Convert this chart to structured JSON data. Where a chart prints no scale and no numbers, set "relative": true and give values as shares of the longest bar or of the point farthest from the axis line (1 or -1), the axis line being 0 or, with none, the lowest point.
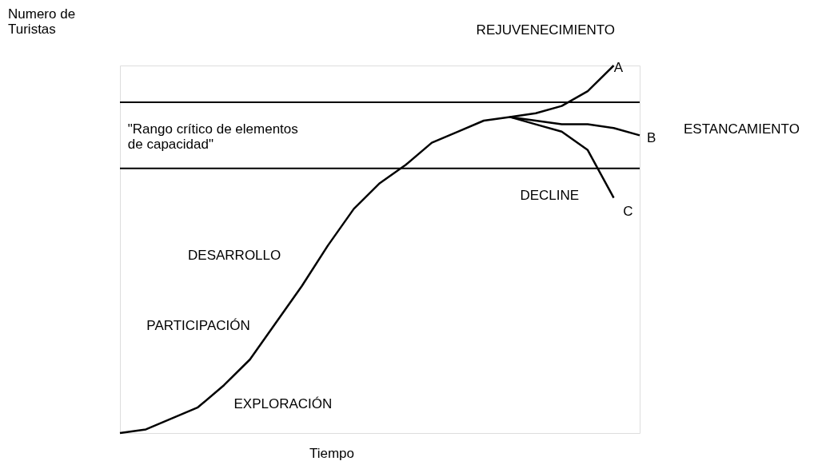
{
  "chart_data": {
    "type": "line",
    "relative": true,
    "tick_labels": false,
    "xlabel": "Tiempo",
    "ylabel": "Numero de\nTuristas",
    "categories": [
      null,
      null,
      null,
      null,
      null,
      null,
      null,
      null,
      null,
      null,
      null,
      null,
      null,
      null,
      null,
      null,
      null,
      null,
      null,
      null,
      null
    ],
    "series": [
      {
        "color": "#000000",
        "values": [
          0,
          0.01,
          0.04,
          0.07,
          0.13,
          0.2,
          0.3,
          0.4,
          0.51,
          0.61,
          0.68,
          0.73,
          0.79,
          0.82,
          0.85,
          0.86,
          0.87,
          0.89,
          0.93,
          1.0,
          null
        ]
      },
      {
        "color": "#000000",
        "values": [
          null,
          null,
          null,
          null,
          null,
          null,
          null,
          null,
          null,
          null,
          null,
          null,
          null,
          null,
          null,
          0.86,
          0.85,
          0.84,
          0.84,
          0.83,
          0.81
        ]
      },
      {
        "color": "#000000",
        "values": [
          null,
          null,
          null,
          null,
          null,
          null,
          null,
          null,
          null,
          null,
          null,
          null,
          null,
          null,
          null,
          0.86,
          0.84,
          0.82,
          0.77,
          0.64,
          null
        ]
      }
    ],
    "ref_lines": [
      {
        "axis": "y",
        "value": 0.9,
        "color": "#000000"
      },
      {
        "axis": "y",
        "value": 0.72,
        "color": "#000000"
      }
    ],
    "annotations": [
      "REJUVENECIMIENTO",
      "A",
      "B",
      "ESTANCAMIENTO",
      "C",
      "DECLINE",
      "\"Rango crítico de elementos\nde capacidad\"",
      "DESARROLLO",
      "PARTICIPACIÓN",
      "EXPLORACIÓN"
    ]
  }
}
